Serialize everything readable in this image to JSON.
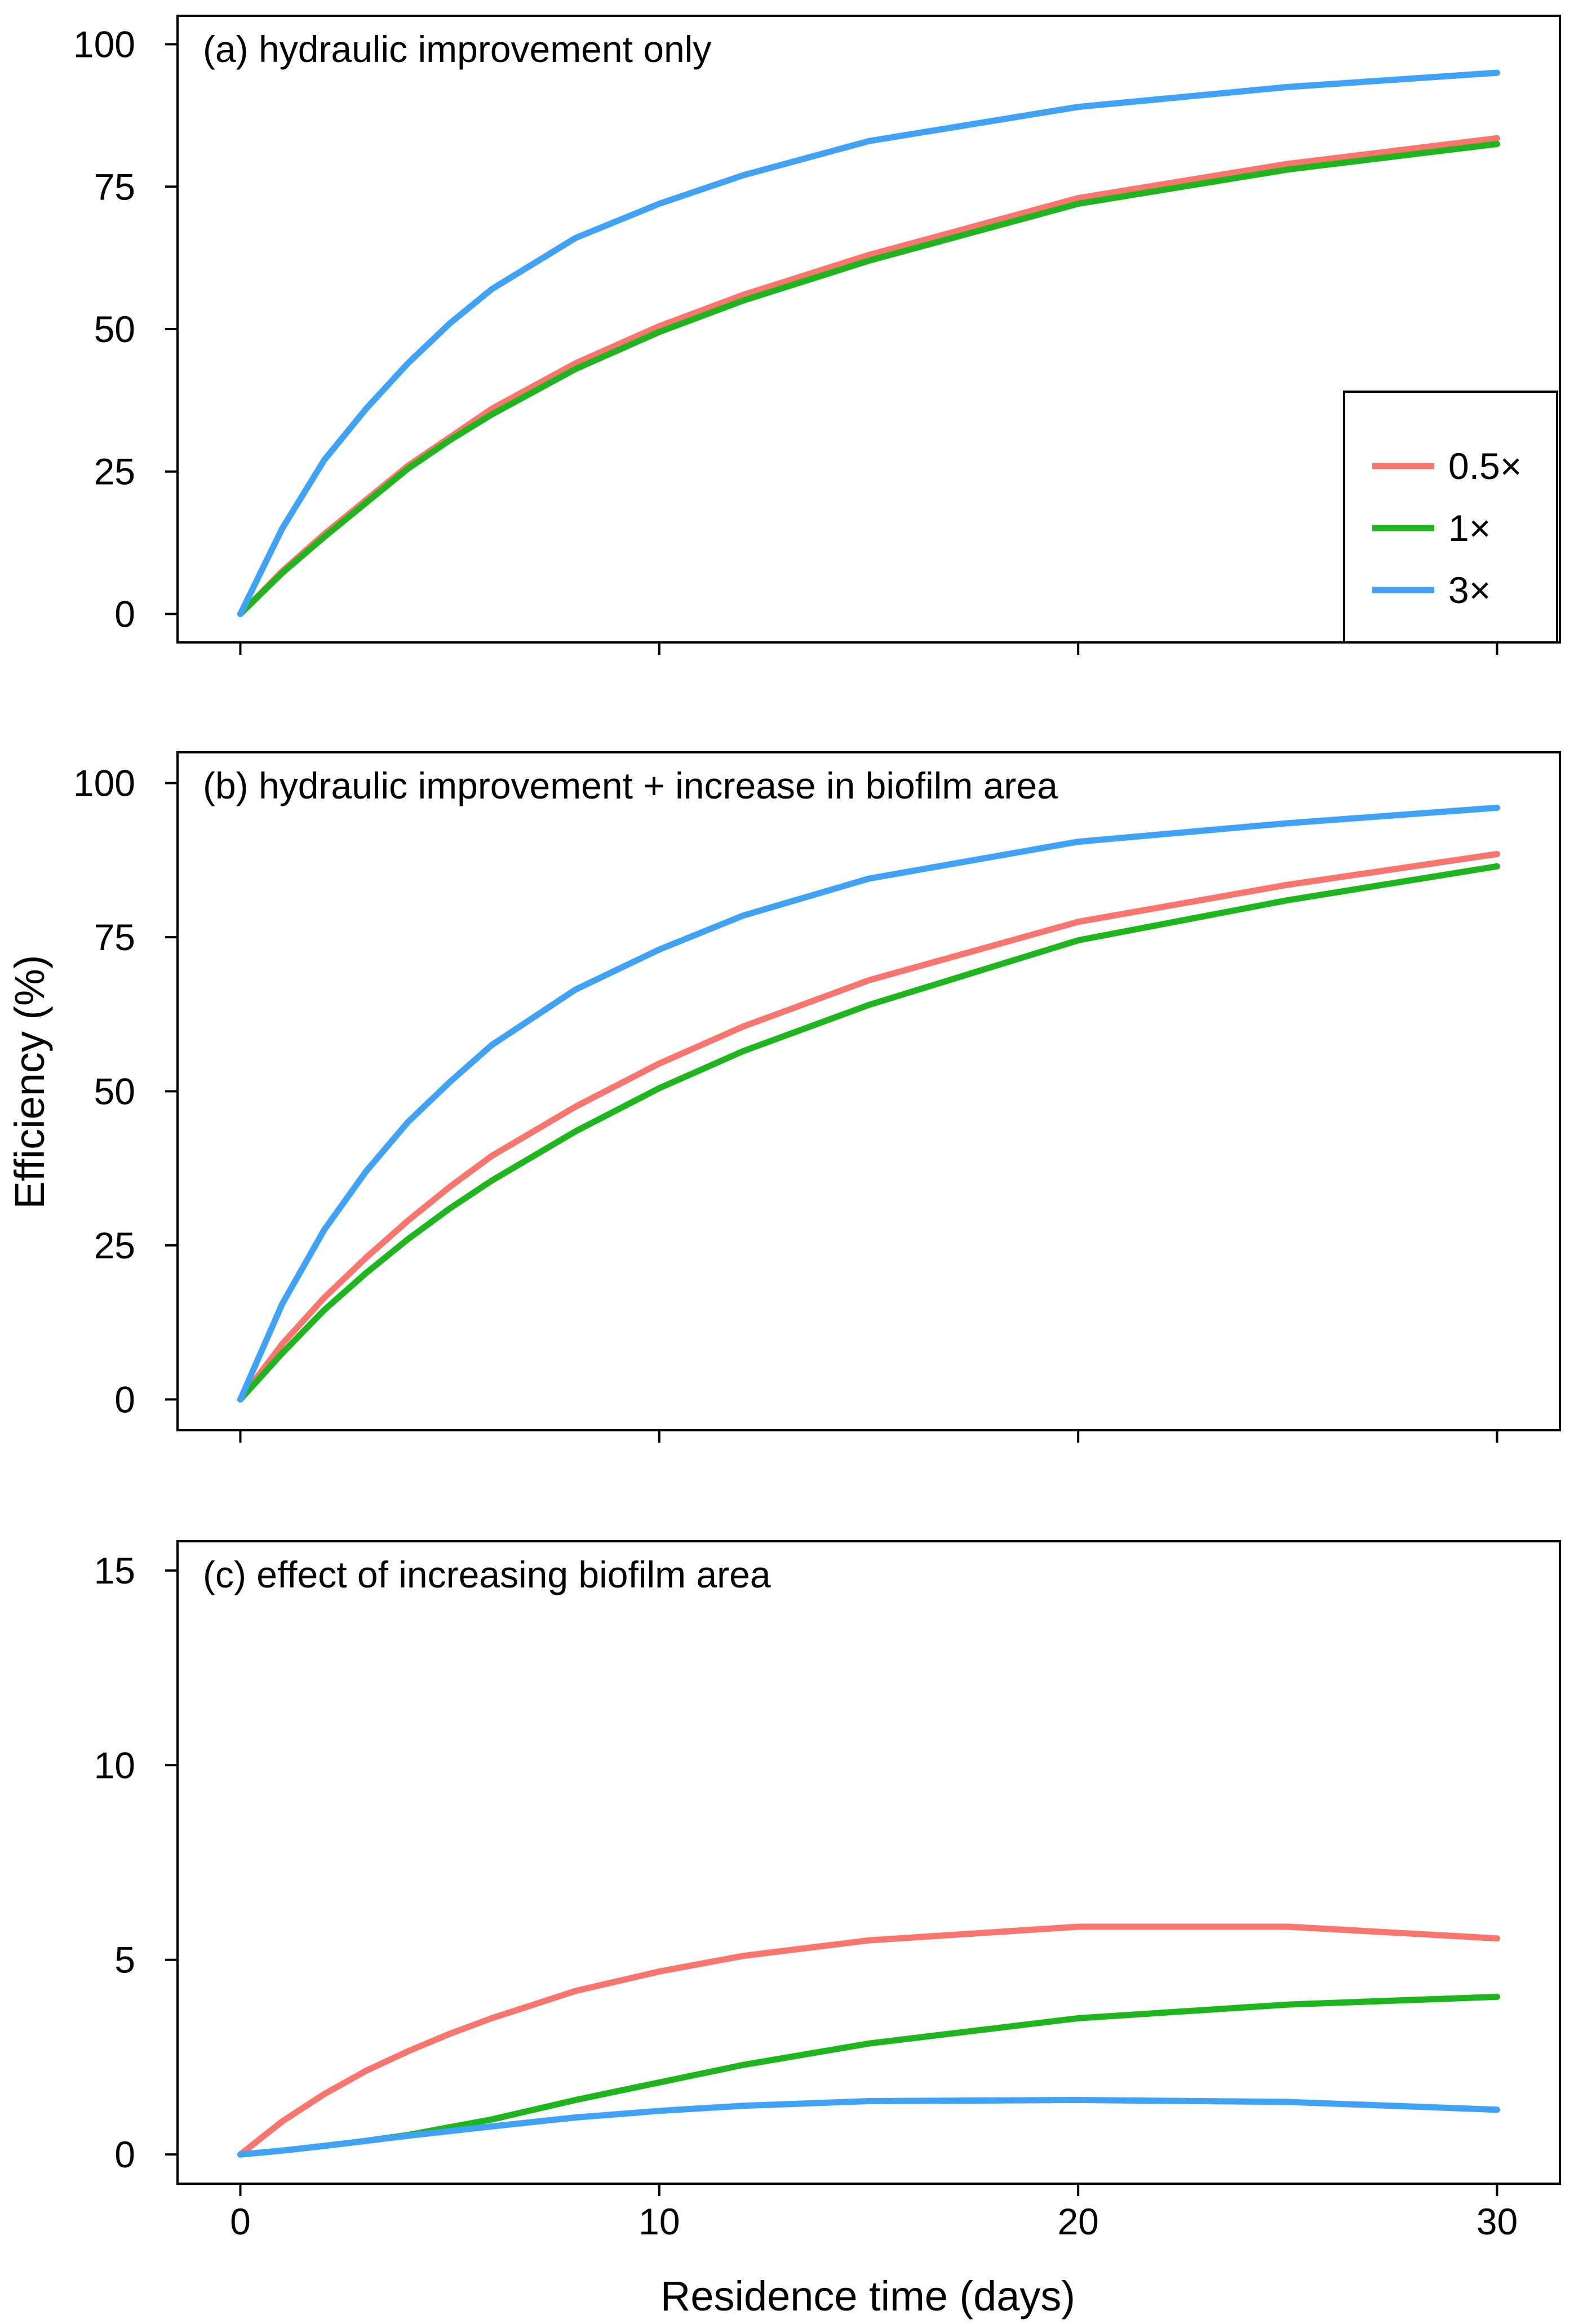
{
  "figure": {
    "xlabel": "Residence time (days)",
    "ylabel": "Efficiency (%)"
  },
  "legend": {
    "items": [
      {
        "label": "0.5×",
        "color": "#f8766d"
      },
      {
        "label": "1×",
        "color": "#1fb51f"
      },
      {
        "label": "3×",
        "color": "#3fa2f5"
      }
    ]
  },
  "chart_data": [
    {
      "type": "line",
      "title": "(a) hydraulic improvement only",
      "xlabel": "Residence time (days)",
      "ylabel": "Efficiency (%)",
      "xlim": [
        -1.5,
        31.5
      ],
      "ylim": [
        -5,
        105
      ],
      "xticks": [
        0,
        10,
        20,
        30
      ],
      "yticks": [
        0,
        25,
        50,
        75,
        100
      ],
      "show_x_tick_labels": false,
      "legend_position": "right",
      "x": [
        0,
        1,
        2,
        3,
        4,
        5,
        6,
        8,
        10,
        12,
        15,
        20,
        25,
        30
      ],
      "series": [
        {
          "name": "0.5×",
          "color": "#f8766d",
          "values": [
            0,
            7.5,
            14,
            20,
            26,
            31,
            36,
            44,
            50.5,
            56,
            63,
            73,
            79,
            83.5
          ]
        },
        {
          "name": "1×",
          "color": "#1fb51f",
          "values": [
            0,
            7.2,
            13.5,
            19.5,
            25.5,
            30.5,
            35,
            43,
            49.5,
            55,
            62,
            72,
            78,
            82.5
          ]
        },
        {
          "name": "3×",
          "color": "#3fa2f5",
          "values": [
            0,
            15,
            27,
            36,
            44,
            51,
            57,
            66,
            72,
            77,
            83,
            89,
            92.5,
            95
          ]
        }
      ]
    },
    {
      "type": "line",
      "title": "(b) hydraulic improvement + increase in biofilm area",
      "xlabel": "Residence time (days)",
      "ylabel": "Efficiency (%)",
      "xlim": [
        -1.5,
        31.5
      ],
      "ylim": [
        -5,
        105
      ],
      "xticks": [
        0,
        10,
        20,
        30
      ],
      "yticks": [
        0,
        25,
        50,
        75,
        100
      ],
      "show_x_tick_labels": false,
      "x": [
        0,
        1,
        2,
        3,
        4,
        5,
        6,
        8,
        10,
        12,
        15,
        20,
        25,
        30
      ],
      "series": [
        {
          "name": "0.5×",
          "color": "#f8766d",
          "values": [
            0,
            9,
            16.5,
            23,
            29,
            34.5,
            39.5,
            47.5,
            54.5,
            60.5,
            68,
            77.5,
            83.5,
            88.5
          ]
        },
        {
          "name": "1×",
          "color": "#1fb51f",
          "values": [
            0,
            7.5,
            14.5,
            20.5,
            26,
            31,
            35.5,
            43.5,
            50.5,
            56.5,
            64,
            74.5,
            81,
            86.5
          ]
        },
        {
          "name": "3×",
          "color": "#3fa2f5",
          "values": [
            0,
            15.5,
            27.5,
            37,
            45,
            51.5,
            57.5,
            66.5,
            73,
            78.5,
            84.5,
            90.5,
            93.5,
            96
          ]
        }
      ]
    },
    {
      "type": "line",
      "title": "(c) effect of increasing biofilm area",
      "xlabel": "Residence time (days)",
      "ylabel": "Efficiency (%)",
      "xlim": [
        -1.5,
        31.5
      ],
      "ylim": [
        -0.75,
        15.75
      ],
      "xticks": [
        0,
        10,
        20,
        30
      ],
      "yticks": [
        0,
        5,
        10,
        15
      ],
      "show_x_tick_labels": true,
      "x": [
        0,
        1,
        2,
        3,
        4,
        5,
        6,
        8,
        10,
        12,
        15,
        20,
        25,
        30
      ],
      "series": [
        {
          "name": "0.5×",
          "color": "#f8766d",
          "values": [
            0,
            0.85,
            1.55,
            2.15,
            2.65,
            3.1,
            3.5,
            4.2,
            4.7,
            5.1,
            5.5,
            5.85,
            5.85,
            5.55
          ]
        },
        {
          "name": "1×",
          "color": "#1fb51f",
          "values": [
            0,
            0.1,
            0.22,
            0.35,
            0.5,
            0.7,
            0.9,
            1.4,
            1.85,
            2.3,
            2.85,
            3.5,
            3.85,
            4.05
          ]
        },
        {
          "name": "3×",
          "color": "#3fa2f5",
          "values": [
            0,
            0.1,
            0.22,
            0.35,
            0.48,
            0.6,
            0.72,
            0.95,
            1.12,
            1.25,
            1.37,
            1.4,
            1.35,
            1.15
          ]
        }
      ]
    }
  ]
}
